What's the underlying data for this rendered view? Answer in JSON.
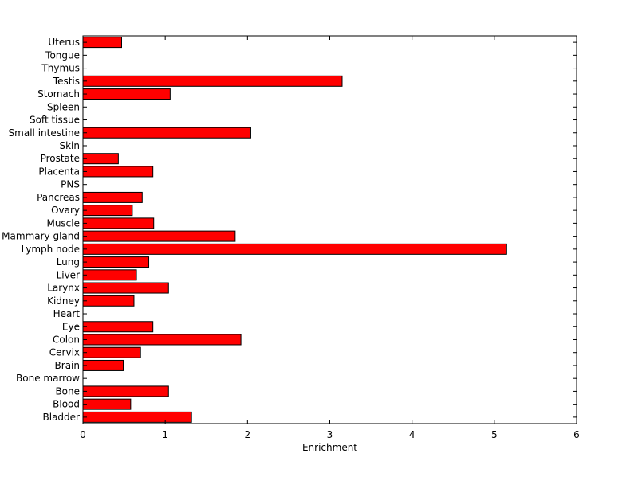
{
  "chart_data": {
    "type": "bar",
    "orientation": "horizontal",
    "xlabel": "Enrichment",
    "ylabel": "",
    "title": "",
    "xlim": [
      0,
      6
    ],
    "xticks": [
      0,
      1,
      2,
      3,
      4,
      5,
      6
    ],
    "xtick_labels": [
      "0",
      "1",
      "2",
      "3",
      "4",
      "5",
      "6"
    ],
    "categories": [
      "Uterus",
      "Tongue",
      "Thymus",
      "Testis",
      "Stomach",
      "Spleen",
      "Soft tissue",
      "Small intestine",
      "Skin",
      "Prostate",
      "Placenta",
      "PNS",
      "Pancreas",
      "Ovary",
      "Muscle",
      "Mammary gland",
      "Lymph node",
      "Lung",
      "Liver",
      "Larynx",
      "Kidney",
      "Heart",
      "Eye",
      "Colon",
      "Cervix",
      "Brain",
      "Bone marrow",
      "Bone",
      "Blood",
      "Bladder"
    ],
    "values": [
      0.47,
      0,
      0,
      3.15,
      1.06,
      0,
      0,
      2.04,
      0,
      0.43,
      0.85,
      0,
      0.72,
      0.6,
      0.86,
      1.85,
      5.15,
      0.8,
      0.65,
      1.04,
      0.62,
      0,
      0.85,
      1.92,
      0.7,
      0.49,
      0,
      1.04,
      0.58,
      1.32
    ],
    "bar_color": "#ff0000",
    "edge_color": "#000000",
    "grid": false
  }
}
